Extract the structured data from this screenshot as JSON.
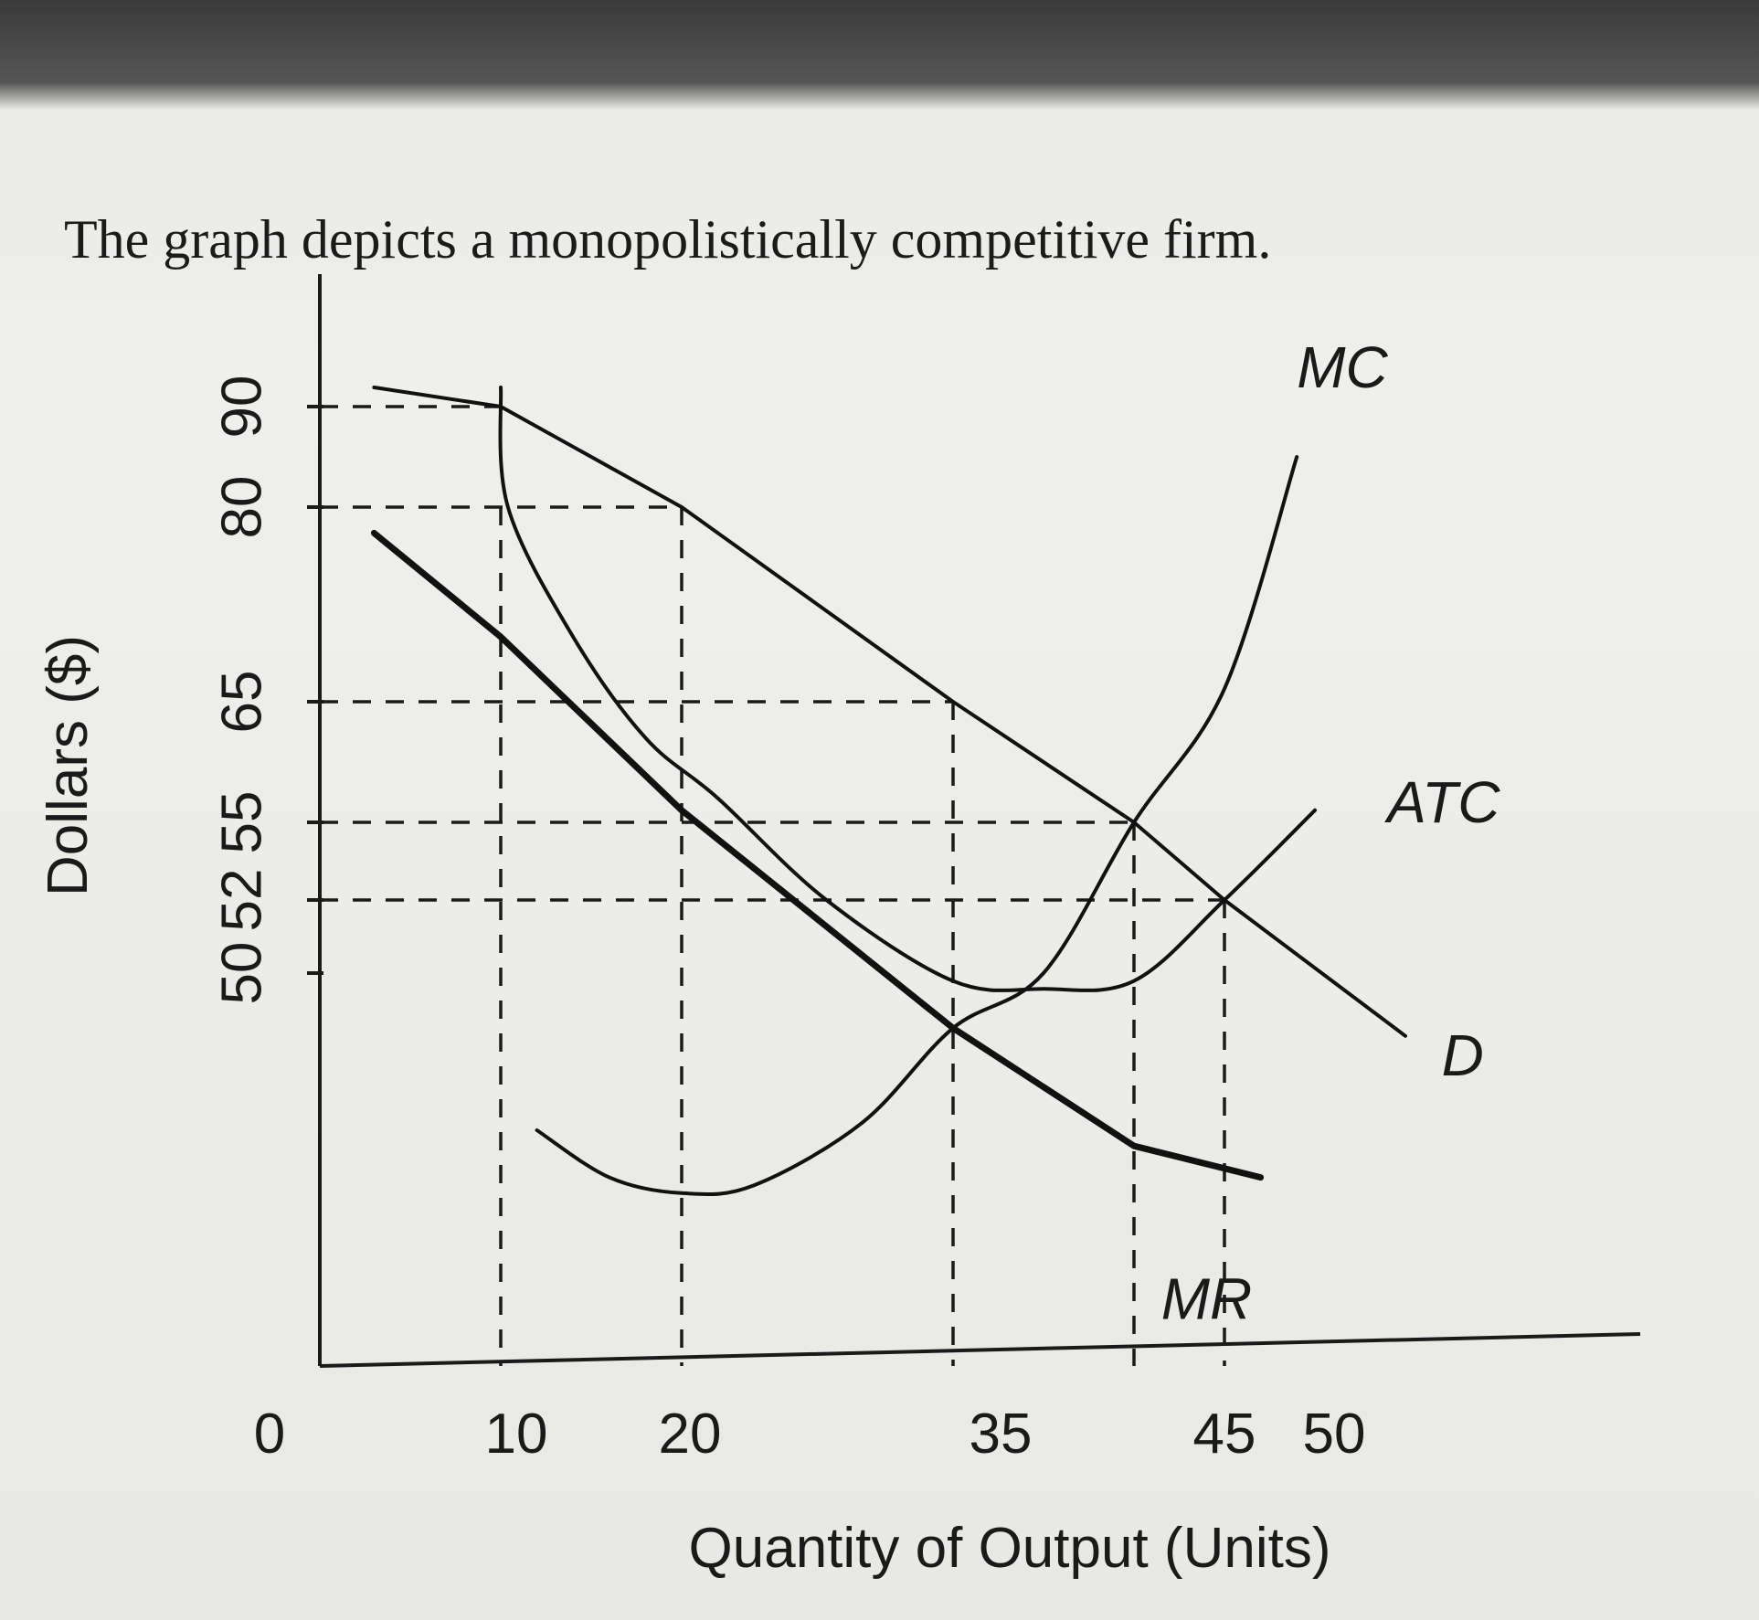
{
  "page": {
    "heading": "The graph depicts a monopolistically competitive firm."
  },
  "chart_data": {
    "type": "line",
    "title": "",
    "xlabel": "Quantity of Output (Units)",
    "ylabel": "Dollars ($)",
    "xlim": [
      0,
      70
    ],
    "ylim": [
      0,
      100
    ],
    "x_ticks": [
      {
        "value": 0,
        "label": "0"
      },
      {
        "value": 10,
        "label": "10"
      },
      {
        "value": 20,
        "label": "20"
      },
      {
        "value": 35,
        "label": "35"
      },
      {
        "value": 45,
        "label": "45"
      },
      {
        "value": 50,
        "label": "50"
      }
    ],
    "y_ticks": [
      {
        "value": 90,
        "label": "90"
      },
      {
        "value": 80,
        "label": "80"
      },
      {
        "value": 65,
        "label": "65"
      },
      {
        "value": 55,
        "label": "55"
      },
      {
        "value": 52,
        "label": "52"
      },
      {
        "value": 50,
        "label": "50"
      }
    ],
    "series": [
      {
        "name": "D",
        "points": [
          [
            3,
            92
          ],
          [
            10,
            90
          ],
          [
            20,
            80
          ],
          [
            35,
            65
          ],
          [
            45,
            55
          ],
          [
            50,
            52
          ],
          [
            60,
            42
          ]
        ]
      },
      {
        "name": "MR",
        "points": [
          [
            3,
            78
          ],
          [
            10,
            70
          ],
          [
            20,
            56
          ],
          [
            35,
            43
          ],
          [
            45,
            28
          ],
          [
            52,
            24
          ]
        ]
      },
      {
        "name": "MC",
        "points": [
          [
            12,
            30
          ],
          [
            16,
            24
          ],
          [
            20,
            22
          ],
          [
            24,
            23
          ],
          [
            30,
            31
          ],
          [
            35,
            43
          ],
          [
            40,
            50
          ],
          [
            45,
            55
          ],
          [
            50,
            66
          ],
          [
            54,
            85
          ]
        ]
      },
      {
        "name": "ATC",
        "points": [
          [
            10,
            92
          ],
          [
            10.4,
            80
          ],
          [
            14,
            70
          ],
          [
            18,
            62
          ],
          [
            22,
            57
          ],
          [
            28,
            52
          ],
          [
            35,
            49
          ],
          [
            40,
            48
          ],
          [
            45,
            49
          ],
          [
            50,
            52
          ],
          [
            55,
            56
          ]
        ]
      }
    ],
    "reference_lines": [
      {
        "from": [
          0,
          90
        ],
        "to": [
          10,
          90
        ]
      },
      {
        "from": [
          0,
          80
        ],
        "to": [
          20,
          80
        ]
      },
      {
        "from": [
          0,
          65
        ],
        "to": [
          35,
          65
        ]
      },
      {
        "from": [
          0,
          55
        ],
        "to": [
          45,
          55
        ]
      },
      {
        "from": [
          0,
          52
        ],
        "to": [
          50,
          52
        ]
      },
      {
        "from": [
          10,
          80
        ],
        "to": [
          10,
          0
        ]
      },
      {
        "from": [
          20,
          80
        ],
        "to": [
          20,
          0
        ]
      },
      {
        "from": [
          35,
          65
        ],
        "to": [
          35,
          0
        ]
      },
      {
        "from": [
          45,
          55
        ],
        "to": [
          45,
          0
        ]
      },
      {
        "from": [
          50,
          52
        ],
        "to": [
          50,
          0
        ]
      }
    ],
    "curve_labels": [
      {
        "series": "MC",
        "text": "MC",
        "at": [
          54,
          92
        ]
      },
      {
        "series": "ATC",
        "text": "ATC",
        "at": [
          59,
          55
        ]
      },
      {
        "series": "D",
        "text": "D",
        "at": [
          62,
          37
        ]
      },
      {
        "series": "MR",
        "text": "MR",
        "at": [
          46.5,
          6
        ]
      }
    ],
    "grid": false,
    "legend": "none"
  }
}
